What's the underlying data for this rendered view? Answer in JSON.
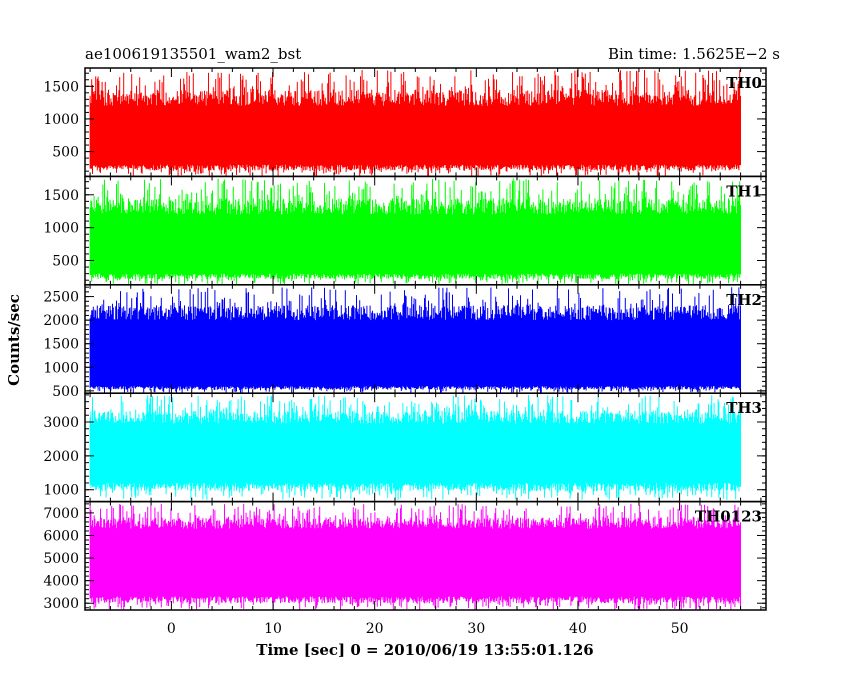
{
  "header": {
    "title_left": "ae100619135501_wam2_bst",
    "title_right": "Bin time: 1.5625E−2 s"
  },
  "axes": {
    "xlabel": "Time [sec] 0 = 2010/06/19 13:55:01.126",
    "ylabel": "Counts/sec"
  },
  "chart_data": {
    "type": "line",
    "x_range": [
      -8.5,
      58.5
    ],
    "data_x_range": [
      -8.0,
      56.0
    ],
    "x_ticks": [
      0,
      10,
      20,
      30,
      40,
      50
    ],
    "x_tick_labels": [
      "0",
      "10",
      "20",
      "30",
      "40",
      "50"
    ],
    "panels": [
      {
        "name": "TH0",
        "color": "#ff0000",
        "ylim": [
          120,
          1780
        ],
        "band": [
          300,
          1200
        ],
        "peak": 1750,
        "low": 120,
        "y_ticks": [
          500,
          1000,
          1500
        ],
        "y_tick_labels": [
          "500",
          "1000",
          "1500"
        ]
      },
      {
        "name": "TH1",
        "color": "#00ff00",
        "ylim": [
          130,
          1780
        ],
        "band": [
          300,
          1200
        ],
        "peak": 1750,
        "low": 130,
        "y_ticks": [
          500,
          1000,
          1500
        ],
        "y_tick_labels": [
          "500",
          "1000",
          "1500"
        ]
      },
      {
        "name": "TH2",
        "color": "#0000ff",
        "ylim": [
          450,
          2750
        ],
        "band": [
          600,
          2000
        ],
        "peak": 2700,
        "low": 450,
        "y_ticks": [
          500,
          1000,
          1500,
          2000,
          2500
        ],
        "y_tick_labels": [
          "500",
          "1000",
          "1500",
          "2000",
          "2500"
        ]
      },
      {
        "name": "TH3",
        "color": "#00ffff",
        "ylim": [
          650,
          3850
        ],
        "band": [
          1200,
          2950
        ],
        "peak": 3800,
        "low": 700,
        "y_ticks": [
          1000,
          2000,
          3000
        ],
        "y_tick_labels": [
          "1000",
          "2000",
          "3000"
        ]
      },
      {
        "name": "TH0123",
        "color": "#ff00ff",
        "ylim": [
          2700,
          7500
        ],
        "band": [
          3300,
          6300
        ],
        "peak": 7400,
        "low": 2700,
        "y_ticks": [
          3000,
          4000,
          5000,
          6000,
          7000
        ],
        "y_tick_labels": [
          "3000",
          "4000",
          "5000",
          "6000",
          "7000"
        ]
      }
    ]
  }
}
